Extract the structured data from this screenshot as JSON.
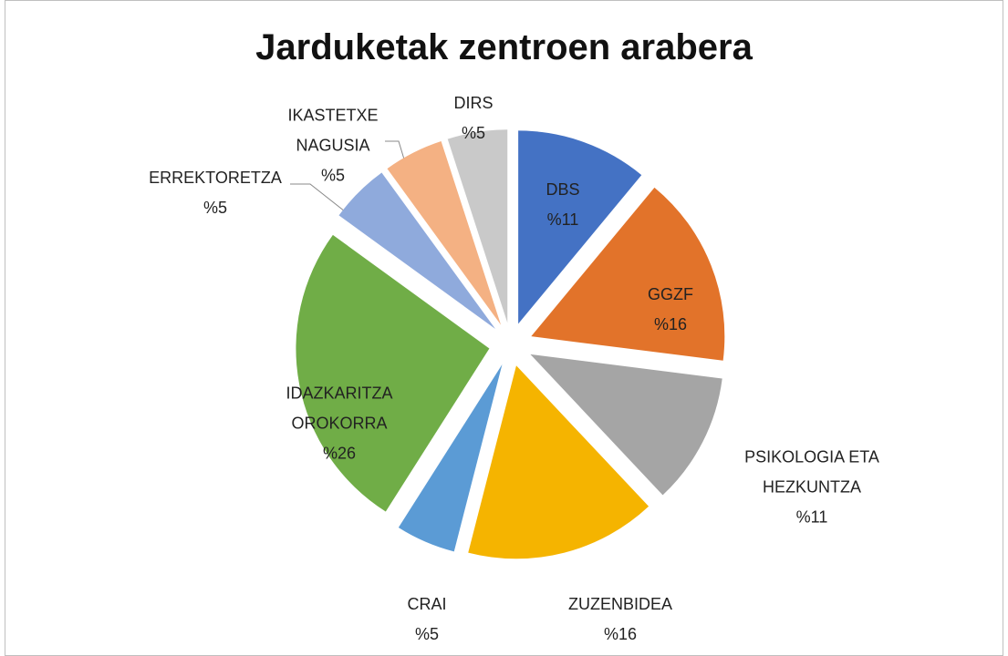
{
  "chart_data": {
    "type": "pie",
    "title": "Jarduketak zentroen arabera",
    "categories": [
      "DBS",
      "GGZF",
      "PSIKOLOGIA ETA HEZKUNTZA",
      "ZUZENBIDEA",
      "CRAI",
      "IDAZKARITZA OROKORRA",
      "ERREKTORETZA",
      "IKASTETXE NAGUSIA",
      "DIRS"
    ],
    "values": [
      11,
      16,
      11,
      16,
      5,
      26,
      5,
      5,
      5
    ],
    "value_labels": [
      "%11",
      "%16",
      "%11",
      "%16",
      "%5",
      "%26",
      "%5",
      "%5",
      "%5"
    ],
    "colors": [
      "#4472c4",
      "#e2732a",
      "#a5a5a5",
      "#f5b400",
      "#5b9bd5",
      "#70ad47",
      "#8faadc",
      "#f4b183",
      "#c9c9c9"
    ]
  }
}
